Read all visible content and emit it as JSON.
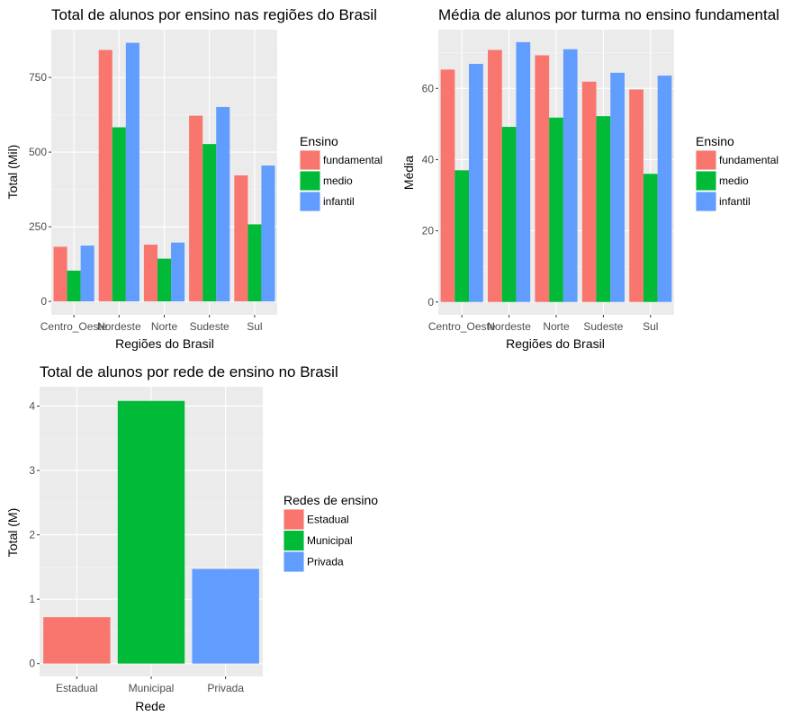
{
  "chart_data": [
    {
      "type": "bar",
      "title": "Total de alunos por ensino nas regiões do Brasil",
      "xlabel": "Regiões do Brasil",
      "ylabel": "Total (Mil)",
      "categories": [
        "Centro_Oeste",
        "Nordeste",
        "Norte",
        "Sudeste",
        "Sul"
      ],
      "ylim": [
        -45,
        910
      ],
      "yticks": [
        0,
        250,
        500,
        750
      ],
      "grid": true,
      "legend": {
        "title": "Ensino",
        "position": "right"
      },
      "series": [
        {
          "name": "fundamental",
          "color": "#F8766D",
          "values": [
            183,
            842,
            190,
            622,
            422
          ]
        },
        {
          "name": "medio",
          "color": "#00BA38",
          "values": [
            103,
            583,
            143,
            527,
            258
          ]
        },
        {
          "name": "infantil",
          "color": "#619CFF",
          "values": [
            187,
            866,
            197,
            651,
            455
          ]
        }
      ]
    },
    {
      "type": "bar",
      "title": "Média de alunos por turma no ensino fundamental",
      "xlabel": "Regiões do Brasil",
      "ylabel": "Média",
      "categories": [
        "Centro_Oeste",
        "Nordeste",
        "Norte",
        "Sudeste",
        "Sul"
      ],
      "ylim": [
        -3.6,
        76.5
      ],
      "yticks": [
        0,
        20,
        40,
        60
      ],
      "grid": true,
      "legend": {
        "title": "Ensino",
        "position": "right"
      },
      "series": [
        {
          "name": "fundamental",
          "color": "#F8766D",
          "values": [
            65.3,
            70.8,
            69.3,
            61.9,
            59.7
          ]
        },
        {
          "name": "medio",
          "color": "#00BA38",
          "values": [
            37.0,
            49.2,
            51.8,
            52.2,
            36.0
          ]
        },
        {
          "name": "infantil",
          "color": "#619CFF",
          "values": [
            66.9,
            73.0,
            71.0,
            64.4,
            63.6
          ]
        }
      ]
    },
    {
      "type": "bar",
      "title": "Total de alunos por rede de ensino no Brasil",
      "xlabel": "Rede",
      "ylabel": "Total (M)",
      "categories": [
        "Estadual",
        "Municipal",
        "Privada"
      ],
      "ylim": [
        -0.2,
        4.3
      ],
      "yticks": [
        0,
        1,
        2,
        3,
        4
      ],
      "grid": true,
      "legend": {
        "title": "Redes de ensino",
        "position": "right"
      },
      "series": [
        {
          "name": "Total",
          "values": [
            0.72,
            4.08,
            1.47
          ]
        }
      ],
      "colors": [
        "#F8766D",
        "#00BA38",
        "#619CFF"
      ]
    }
  ]
}
